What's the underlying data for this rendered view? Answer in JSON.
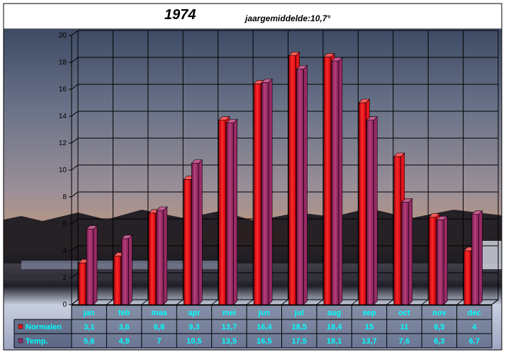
{
  "header": {
    "year": "1974",
    "annual_avg": "jaargemiddelde:10,7°"
  },
  "chart_data": {
    "type": "bar",
    "title": "1974",
    "subtitle": "jaargemiddelde:10,7°",
    "categories": [
      "jan",
      "feb",
      "maa",
      "apr",
      "mei",
      "jun",
      "jul",
      "aug",
      "sep",
      "oct",
      "nov",
      "dec"
    ],
    "series": [
      {
        "name": "Normalen",
        "values": [
          3.1,
          3.6,
          6.8,
          9.3,
          13.7,
          16.4,
          18.5,
          18.4,
          15,
          11,
          6.5,
          4
        ],
        "labels": [
          "3,1",
          "3,6",
          "6,8",
          "9,3",
          "13,7",
          "16,4",
          "18,5",
          "18,4",
          "15",
          "11",
          "6,5",
          "4"
        ],
        "color": "#e8141c"
      },
      {
        "name": "Temp.",
        "values": [
          5.6,
          4.9,
          7,
          10.5,
          13.5,
          16.5,
          17.5,
          18.1,
          13.7,
          7.6,
          6.3,
          6.7
        ],
        "labels": [
          "5,6",
          "4,9",
          "7",
          "10,5",
          "13,5",
          "16,5",
          "17,5",
          "18,1",
          "13,7",
          "7,6",
          "6,3",
          "6,7"
        ],
        "color": "#9b2a66"
      }
    ],
    "ylim": [
      0,
      20
    ],
    "yticks": [
      0,
      2,
      4,
      6,
      8,
      10,
      12,
      14,
      16,
      18,
      20
    ],
    "grid": true,
    "legend": "data-table"
  },
  "colors": {
    "table_text": "#00ffff",
    "table_bg": "#0a1a3c"
  }
}
